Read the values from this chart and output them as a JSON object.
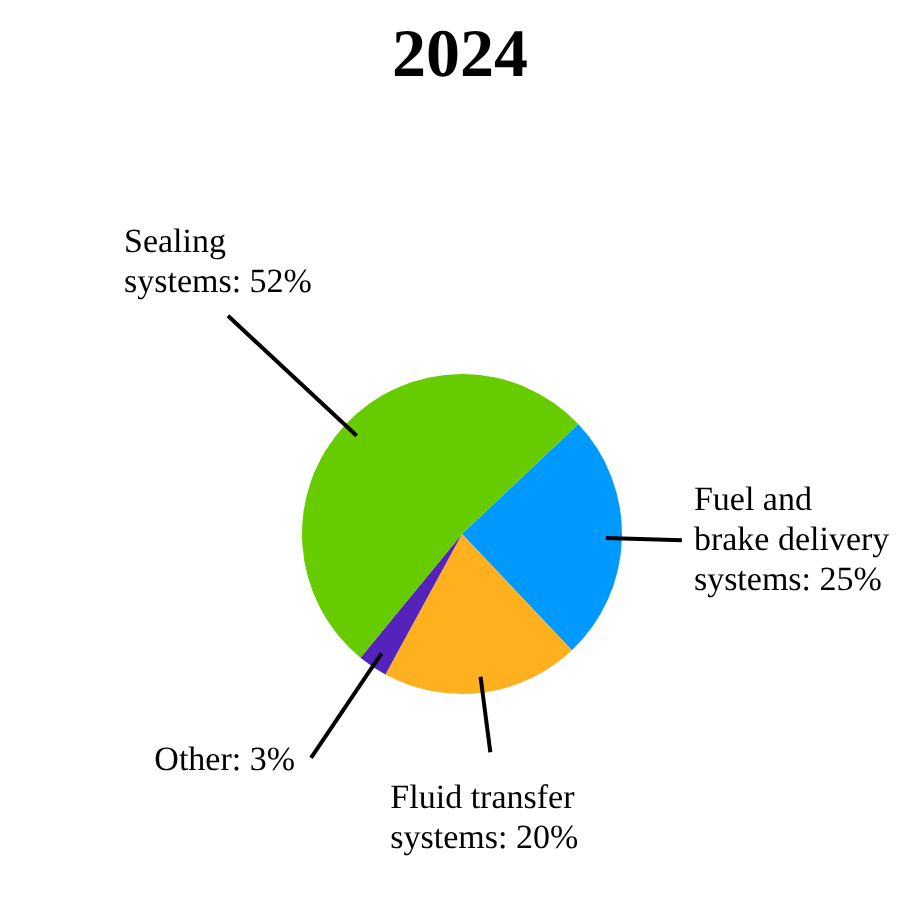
{
  "chart_data": {
    "type": "pie",
    "title": "2024",
    "categories": [
      "Fuel and brake delivery systems",
      "Fluid transfer systems",
      "Other",
      "Sealing systems"
    ],
    "values": [
      25,
      20,
      3,
      52
    ],
    "value_labels": [
      "25%",
      "20%",
      "3%",
      "52%"
    ],
    "colors": [
      "#0099ff",
      "#ffb01f",
      "#5522bb",
      "#66cc00"
    ]
  }
}
